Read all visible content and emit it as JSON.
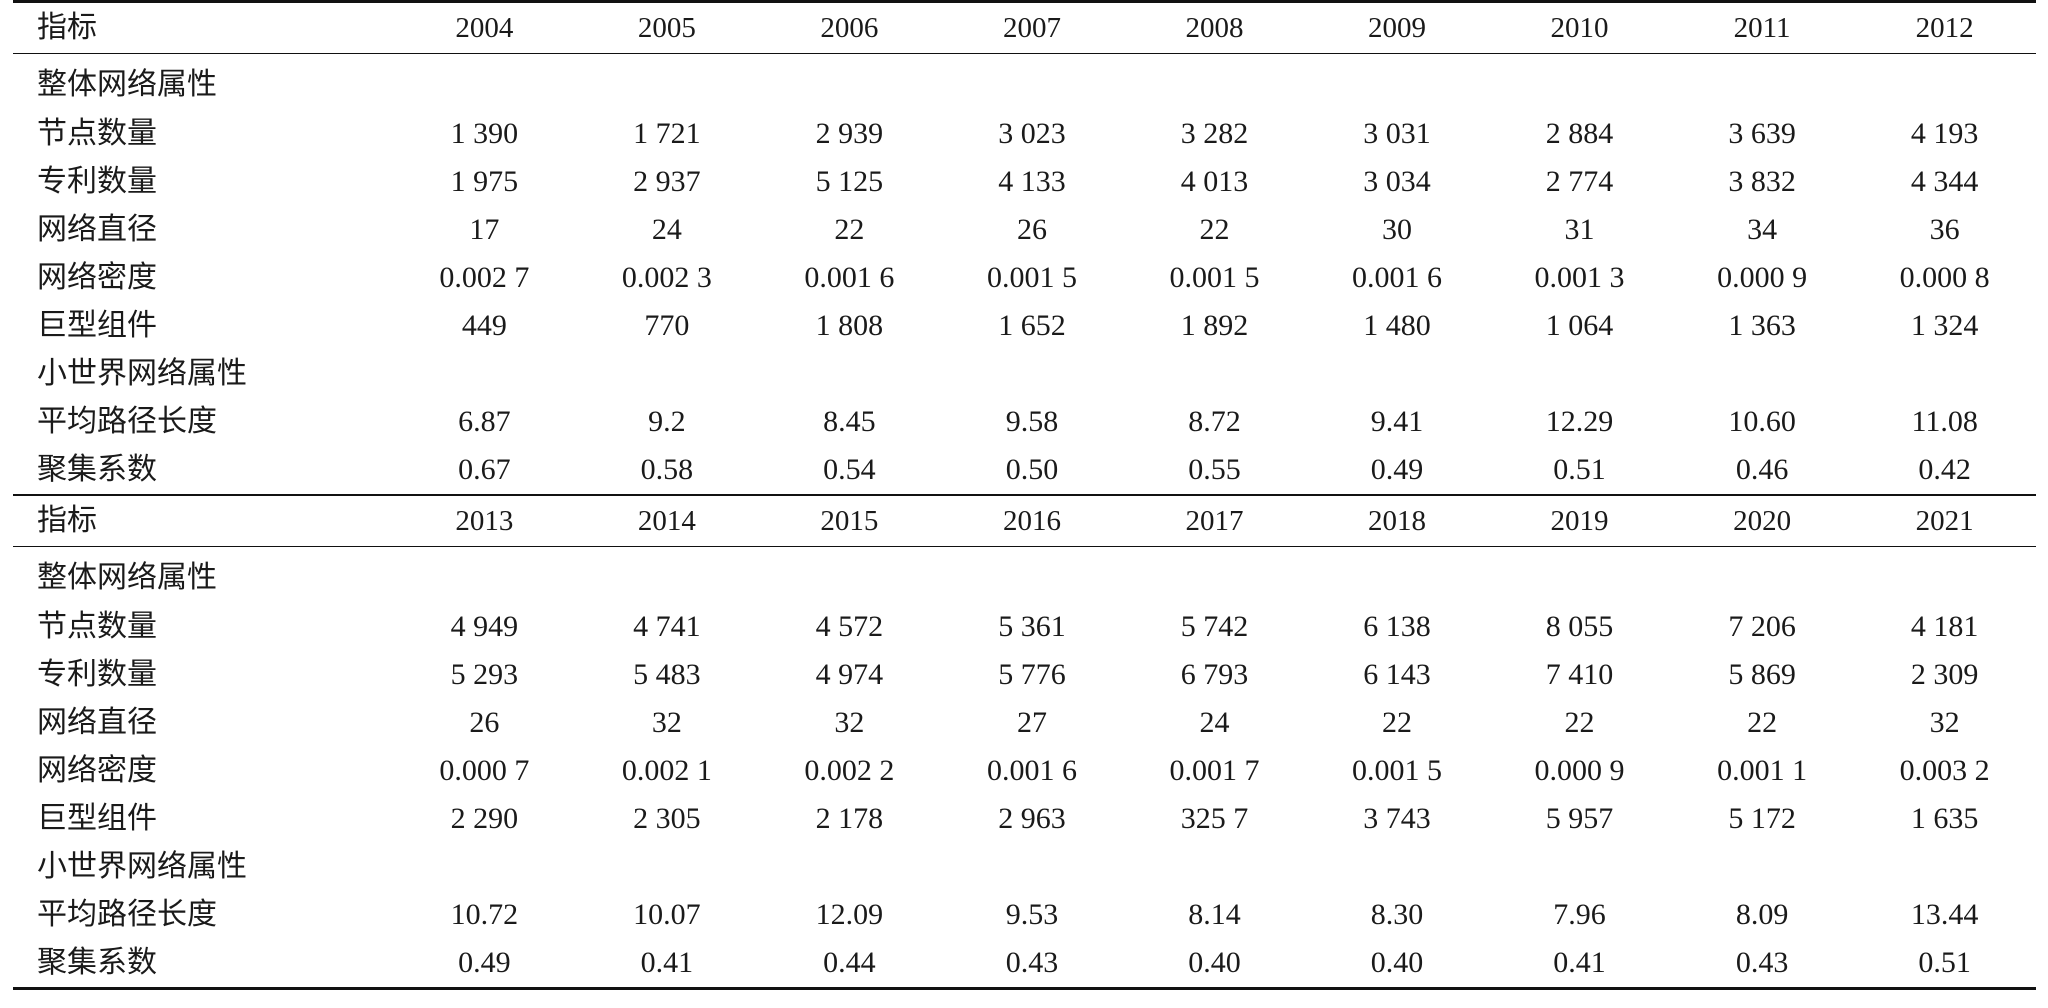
{
  "sections": [
    {
      "header_label": "指标",
      "years": [
        "2004",
        "2005",
        "2006",
        "2007",
        "2008",
        "2009",
        "2010",
        "2011",
        "2012"
      ],
      "rows": [
        {
          "label": "整体网络属性",
          "values": []
        },
        {
          "label": "节点数量",
          "values": [
            "1 390",
            "1 721",
            "2 939",
            "3 023",
            "3 282",
            "3 031",
            "2 884",
            "3 639",
            "4 193"
          ]
        },
        {
          "label": "专利数量",
          "values": [
            "1 975",
            "2 937",
            "5 125",
            "4 133",
            "4 013",
            "3 034",
            "2 774",
            "3 832",
            "4 344"
          ]
        },
        {
          "label": "网络直径",
          "values": [
            "17",
            "24",
            "22",
            "26",
            "22",
            "30",
            "31",
            "34",
            "36"
          ]
        },
        {
          "label": "网络密度",
          "values": [
            "0.002 7",
            "0.002 3",
            "0.001 6",
            "0.001 5",
            "0.001 5",
            "0.001 6",
            "0.001 3",
            "0.000 9",
            "0.000 8"
          ]
        },
        {
          "label": "巨型组件",
          "values": [
            "449",
            "770",
            "1 808",
            "1 652",
            "1 892",
            "1 480",
            "1 064",
            "1 363",
            "1 324"
          ]
        },
        {
          "label": "小世界网络属性",
          "values": []
        },
        {
          "label": "平均路径长度",
          "values": [
            "6.87",
            "9.2",
            "8.45",
            "9.58",
            "8.72",
            "9.41",
            "12.29",
            "10.60",
            "11.08"
          ]
        },
        {
          "label": "聚集系数",
          "values": [
            "0.67",
            "0.58",
            "0.54",
            "0.50",
            "0.55",
            "0.49",
            "0.51",
            "0.46",
            "0.42"
          ]
        }
      ]
    },
    {
      "header_label": "指标",
      "years": [
        "2013",
        "2014",
        "2015",
        "2016",
        "2017",
        "2018",
        "2019",
        "2020",
        "2021"
      ],
      "rows": [
        {
          "label": "整体网络属性",
          "values": []
        },
        {
          "label": "节点数量",
          "values": [
            "4 949",
            "4 741",
            "4 572",
            "5 361",
            "5 742",
            "6 138",
            "8 055",
            "7 206",
            "4 181"
          ]
        },
        {
          "label": "专利数量",
          "values": [
            "5 293",
            "5 483",
            "4 974",
            "5 776",
            "6 793",
            "6 143",
            "7 410",
            "5 869",
            "2 309"
          ]
        },
        {
          "label": "网络直径",
          "values": [
            "26",
            "32",
            "32",
            "27",
            "24",
            "22",
            "22",
            "22",
            "32"
          ]
        },
        {
          "label": "网络密度",
          "values": [
            "0.000 7",
            "0.002 1",
            "0.002 2",
            "0.001 6",
            "0.001 7",
            "0.001 5",
            "0.000 9",
            "0.001 1",
            "0.003 2"
          ]
        },
        {
          "label": "巨型组件",
          "values": [
            "2 290",
            "2 305",
            "2 178",
            "2 963",
            "325 7",
            "3 743",
            "5 957",
            "5 172",
            "1 635"
          ]
        },
        {
          "label": "小世界网络属性",
          "values": []
        },
        {
          "label": "平均路径长度",
          "values": [
            "10.72",
            "10.07",
            "12.09",
            "9.53",
            "8.14",
            "8.30",
            "7.96",
            "8.09",
            "13.44"
          ]
        },
        {
          "label": "聚集系数",
          "values": [
            "0.49",
            "0.41",
            "0.44",
            "0.43",
            "0.40",
            "0.40",
            "0.41",
            "0.43",
            "0.51"
          ]
        }
      ]
    }
  ]
}
